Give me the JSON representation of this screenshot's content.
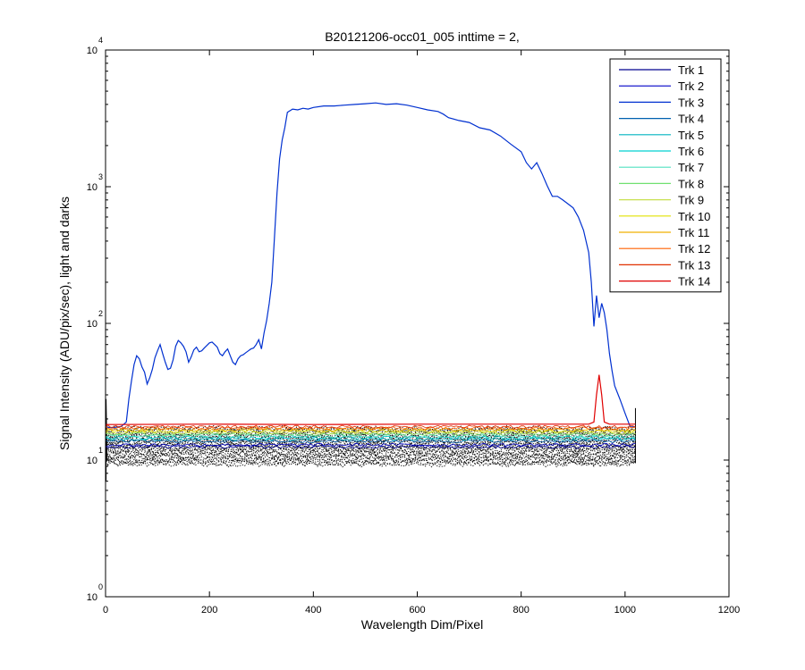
{
  "chart_data": {
    "type": "line",
    "title": "B20121206-occ01_005 inttime = 2,",
    "xlabel": "Wavelength Dim/Pixel",
    "ylabel": "Signal Intensity (ADU/pix/sec), light and darks",
    "xlim": [
      0,
      1200
    ],
    "ylim": [
      1,
      10000
    ],
    "y_scale": "log",
    "grid": false,
    "legend_position": "top-right",
    "x_ticks": [
      {
        "value": 0,
        "label": "0"
      },
      {
        "value": 200,
        "label": "200"
      },
      {
        "value": 400,
        "label": "400"
      },
      {
        "value": 600,
        "label": "600"
      },
      {
        "value": 800,
        "label": "800"
      },
      {
        "value": 1000,
        "label": "1000"
      },
      {
        "value": 1200,
        "label": "1200"
      }
    ],
    "y_ticks": [
      {
        "value": 1,
        "base": "10",
        "exp": "0"
      },
      {
        "value": 10,
        "base": "10",
        "exp": "1"
      },
      {
        "value": 100,
        "base": "10",
        "exp": "2"
      },
      {
        "value": 1000,
        "base": "10",
        "exp": "3"
      },
      {
        "value": 10000,
        "base": "10",
        "exp": "4"
      }
    ],
    "series": [
      {
        "name": "Trk 1",
        "color": "#00008f"
      },
      {
        "name": "Trk 2",
        "color": "#0000c8"
      },
      {
        "name": "Trk 3",
        "color": "#0030d0",
        "x": [
          0,
          10,
          20,
          30,
          40,
          45,
          50,
          55,
          60,
          65,
          70,
          75,
          80,
          85,
          90,
          95,
          100,
          105,
          110,
          115,
          120,
          125,
          130,
          135,
          140,
          145,
          150,
          155,
          160,
          165,
          170,
          175,
          180,
          185,
          190,
          195,
          200,
          205,
          210,
          215,
          220,
          225,
          230,
          235,
          240,
          245,
          250,
          255,
          260,
          265,
          270,
          275,
          280,
          285,
          290,
          295,
          300,
          305,
          310,
          315,
          320,
          325,
          330,
          335,
          340,
          345,
          350,
          360,
          370,
          380,
          390,
          400,
          420,
          440,
          460,
          480,
          500,
          520,
          540,
          560,
          580,
          600,
          620,
          640,
          650,
          660,
          680,
          700,
          720,
          740,
          760,
          780,
          800,
          810,
          820,
          830,
          840,
          850,
          860,
          870,
          880,
          890,
          900,
          910,
          920,
          930,
          935,
          940,
          945,
          950,
          955,
          960,
          965,
          970,
          975,
          980,
          990,
          1000,
          1010,
          1020
        ],
        "y": [
          17.5,
          17.3,
          17.4,
          17.6,
          19,
          28,
          38,
          50,
          58,
          55,
          48,
          44,
          36,
          40,
          46,
          56,
          63,
          70,
          60,
          52,
          46,
          47,
          54,
          68,
          75,
          72,
          68,
          62,
          52,
          57,
          64,
          67,
          62,
          63,
          66,
          69,
          72,
          73,
          70,
          67,
          60,
          58,
          62,
          65,
          58,
          52,
          50,
          55,
          58,
          59,
          61,
          63,
          65,
          66,
          70,
          76,
          65,
          85,
          105,
          140,
          200,
          420,
          900,
          1600,
          2200,
          2700,
          3500,
          3700,
          3650,
          3750,
          3700,
          3800,
          3900,
          3900,
          3950,
          4000,
          4050,
          4100,
          4000,
          4050,
          3950,
          3800,
          3650,
          3550,
          3400,
          3200,
          3050,
          2950,
          2700,
          2600,
          2350,
          2050,
          1800,
          1500,
          1350,
          1500,
          1250,
          1020,
          850,
          850,
          800,
          750,
          700,
          600,
          480,
          330,
          200,
          95,
          160,
          110,
          140,
          120,
          90,
          60,
          45,
          35,
          28,
          22,
          17.5,
          17.5
        ]
      },
      {
        "name": "Trk 4",
        "color": "#0060b0"
      },
      {
        "name": "Trk 5",
        "color": "#00b4c0"
      },
      {
        "name": "Trk 6",
        "color": "#00d0d0"
      },
      {
        "name": "Trk 7",
        "color": "#50e0c0"
      },
      {
        "name": "Trk 8",
        "color": "#70e070"
      },
      {
        "name": "Trk 9",
        "color": "#c8e050"
      },
      {
        "name": "Trk 10",
        "color": "#e0e000"
      },
      {
        "name": "Trk 11",
        "color": "#f0b000"
      },
      {
        "name": "Trk 12",
        "color": "#ff6000"
      },
      {
        "name": "Trk 13",
        "color": "#e03000"
      },
      {
        "name": "Trk 14",
        "color": "#e00000",
        "x": [
          0,
          200,
          400,
          600,
          800,
          930,
          940,
          945,
          950,
          955,
          960,
          970,
          1020
        ],
        "y": [
          18.2,
          18.3,
          18.2,
          18.3,
          18.3,
          18.3,
          19,
          30,
          42,
          30,
          19,
          18.3,
          18.3
        ]
      }
    ],
    "dark_noise_band": {
      "color": "#000000",
      "x_range": [
        0,
        1020
      ],
      "y_range": [
        9.3,
        18.2
      ]
    }
  }
}
